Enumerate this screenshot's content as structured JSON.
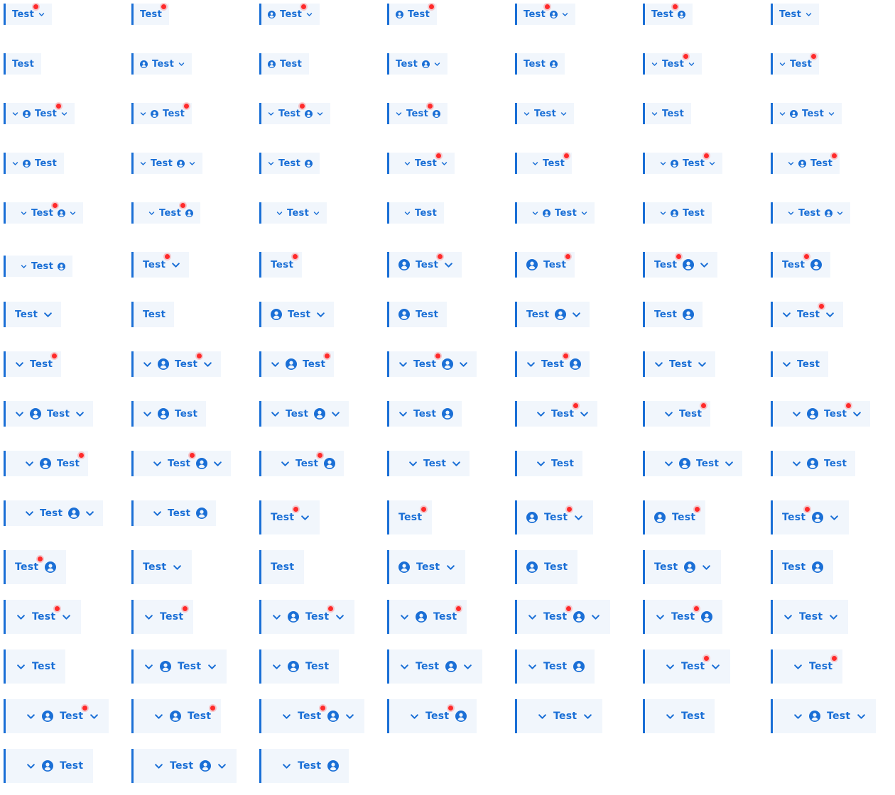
{
  "item_label": "Test",
  "colors": {
    "accent": "#1a6fd6",
    "background": "#f1f6fc",
    "badge": "#ff2a2a"
  },
  "icons": {
    "user": "user-circle-icon",
    "chevron": "chevron-down-icon"
  },
  "items": [
    {
      "l": "Test",
      "s": "sm",
      "p": 0,
      "c": 0,
      "d": 1,
      "a": 1
    },
    {
      "l": "Test",
      "s": "sm",
      "p": 0,
      "c": 0,
      "d": 1,
      "a": 0
    },
    {
      "l": "Test",
      "s": "sm",
      "p": 0,
      "c": 0,
      "d": 1,
      "b": 1,
      "a": 1
    },
    {
      "l": "Test",
      "s": "sm",
      "p": 0,
      "c": 0,
      "d": 1,
      "b": 1,
      "a": 0
    },
    {
      "l": "Test",
      "s": "sm",
      "p": 0,
      "c": 0,
      "d": 1,
      "e": 1,
      "a": 1
    },
    {
      "l": "Test",
      "s": "sm",
      "p": 0,
      "c": 0,
      "d": 1,
      "e": 1,
      "a": 0
    },
    {
      "l": "Test",
      "s": "sm",
      "p": 0,
      "c": 0,
      "d": 0,
      "a": 1
    },
    {
      "l": "Test",
      "s": "sm",
      "p": 0,
      "c": 0,
      "d": 0,
      "a": 0
    },
    {
      "l": "Test",
      "s": "sm",
      "p": 0,
      "c": 0,
      "d": 0,
      "b": 1,
      "a": 1
    },
    {
      "l": "Test",
      "s": "sm",
      "p": 0,
      "c": 0,
      "d": 0,
      "b": 1,
      "a": 0
    },
    {
      "l": "Test",
      "s": "sm",
      "p": 0,
      "c": 0,
      "d": 0,
      "e": 1,
      "a": 1
    },
    {
      "l": "Test",
      "s": "sm",
      "p": 0,
      "c": 0,
      "d": 0,
      "e": 1,
      "a": 0
    },
    {
      "l": "Test",
      "s": "sm",
      "p": 1,
      "c": 1,
      "d": 1,
      "a": 1
    },
    {
      "l": "Test",
      "s": "sm",
      "p": 1,
      "c": 1,
      "d": 1,
      "a": 0
    },
    {
      "l": "Test",
      "s": "sm",
      "p": 1,
      "c": 1,
      "d": 1,
      "b": 1,
      "a": 1
    },
    {
      "l": "Test",
      "s": "sm",
      "p": 1,
      "c": 1,
      "d": 1,
      "b": 1,
      "a": 0
    },
    {
      "l": "Test",
      "s": "sm",
      "p": 1,
      "c": 1,
      "d": 1,
      "e": 1,
      "a": 1
    },
    {
      "l": "Test",
      "s": "sm",
      "p": 1,
      "c": 1,
      "d": 1,
      "e": 1,
      "a": 0
    },
    {
      "l": "Test",
      "s": "sm",
      "p": 1,
      "c": 1,
      "d": 0,
      "a": 1
    },
    {
      "l": "Test",
      "s": "sm",
      "p": 1,
      "c": 1,
      "d": 0,
      "a": 0
    },
    {
      "l": "Test",
      "s": "sm",
      "p": 1,
      "c": 1,
      "d": 0,
      "b": 1,
      "a": 1
    },
    {
      "l": "Test",
      "s": "sm",
      "p": 1,
      "c": 1,
      "d": 0,
      "b": 1,
      "a": 0
    },
    {
      "l": "Test",
      "s": "sm",
      "p": 1,
      "c": 1,
      "d": 0,
      "e": 1,
      "a": 1
    },
    {
      "l": "Test",
      "s": "sm",
      "p": 1,
      "c": 1,
      "d": 0,
      "e": 1,
      "a": 0
    },
    {
      "l": "Test",
      "s": "sm",
      "p": 2,
      "c": 1,
      "d": 1,
      "a": 1
    },
    {
      "l": "Test",
      "s": "sm",
      "p": 2,
      "c": 1,
      "d": 1,
      "a": 0
    },
    {
      "l": "Test",
      "s": "sm",
      "p": 2,
      "c": 1,
      "d": 1,
      "b": 1,
      "a": 1
    },
    {
      "l": "Test",
      "s": "sm",
      "p": 2,
      "c": 1,
      "d": 1,
      "b": 1,
      "a": 0
    },
    {
      "l": "Test",
      "s": "sm",
      "p": 2,
      "c": 1,
      "d": 1,
      "e": 1,
      "a": 1
    },
    {
      "l": "Test",
      "s": "sm",
      "p": 2,
      "c": 1,
      "d": 1,
      "e": 1,
      "a": 0
    },
    {
      "l": "Test",
      "s": "sm",
      "p": 2,
      "c": 1,
      "d": 0,
      "a": 1
    },
    {
      "l": "Test",
      "s": "sm",
      "p": 2,
      "c": 1,
      "d": 0,
      "a": 0
    },
    {
      "l": "Test",
      "s": "sm",
      "p": 2,
      "c": 1,
      "d": 0,
      "b": 1,
      "a": 1
    },
    {
      "l": "Test",
      "s": "sm",
      "p": 2,
      "c": 1,
      "d": 0,
      "b": 1,
      "a": 0
    },
    {
      "l": "Test",
      "s": "sm",
      "p": 2,
      "c": 1,
      "d": 0,
      "e": 1,
      "a": 1
    },
    {
      "l": "Test",
      "s": "sm",
      "p": 2,
      "c": 1,
      "d": 0,
      "e": 1,
      "a": 0
    },
    {
      "l": "Test",
      "s": "md",
      "p": 0,
      "c": 0,
      "d": 1,
      "a": 1
    },
    {
      "l": "Test",
      "s": "md",
      "p": 0,
      "c": 0,
      "d": 1,
      "a": 0
    },
    {
      "l": "Test",
      "s": "md",
      "p": 0,
      "c": 0,
      "d": 1,
      "b": 1,
      "a": 1
    },
    {
      "l": "Test",
      "s": "md",
      "p": 0,
      "c": 0,
      "d": 1,
      "b": 1,
      "a": 0
    },
    {
      "l": "Test",
      "s": "md",
      "p": 0,
      "c": 0,
      "d": 1,
      "e": 1,
      "a": 1
    },
    {
      "l": "Test",
      "s": "md",
      "p": 0,
      "c": 0,
      "d": 1,
      "e": 1,
      "a": 0
    },
    {
      "l": "Test",
      "s": "md",
      "p": 0,
      "c": 0,
      "d": 0,
      "a": 1
    },
    {
      "l": "Test",
      "s": "md",
      "p": 0,
      "c": 0,
      "d": 0,
      "a": 0
    },
    {
      "l": "Test",
      "s": "md",
      "p": 0,
      "c": 0,
      "d": 0,
      "b": 1,
      "a": 1
    },
    {
      "l": "Test",
      "s": "md",
      "p": 0,
      "c": 0,
      "d": 0,
      "b": 1,
      "a": 0
    },
    {
      "l": "Test",
      "s": "md",
      "p": 0,
      "c": 0,
      "d": 0,
      "e": 1,
      "a": 1
    },
    {
      "l": "Test",
      "s": "md",
      "p": 0,
      "c": 0,
      "d": 0,
      "e": 1,
      "a": 0
    },
    {
      "l": "Test",
      "s": "md",
      "p": 1,
      "c": 1,
      "d": 1,
      "a": 1
    },
    {
      "l": "Test",
      "s": "md",
      "p": 1,
      "c": 1,
      "d": 1,
      "a": 0
    },
    {
      "l": "Test",
      "s": "md",
      "p": 1,
      "c": 1,
      "d": 1,
      "b": 1,
      "a": 1
    },
    {
      "l": "Test",
      "s": "md",
      "p": 1,
      "c": 1,
      "d": 1,
      "b": 1,
      "a": 0
    },
    {
      "l": "Test",
      "s": "md",
      "p": 1,
      "c": 1,
      "d": 1,
      "e": 1,
      "a": 1
    },
    {
      "l": "Test",
      "s": "md",
      "p": 1,
      "c": 1,
      "d": 1,
      "e": 1,
      "a": 0
    },
    {
      "l": "Test",
      "s": "md",
      "p": 1,
      "c": 1,
      "d": 0,
      "a": 1
    },
    {
      "l": "Test",
      "s": "md",
      "p": 1,
      "c": 1,
      "d": 0,
      "a": 0
    },
    {
      "l": "Test",
      "s": "md",
      "p": 1,
      "c": 1,
      "d": 0,
      "b": 1,
      "a": 1
    },
    {
      "l": "Test",
      "s": "md",
      "p": 1,
      "c": 1,
      "d": 0,
      "b": 1,
      "a": 0
    },
    {
      "l": "Test",
      "s": "md",
      "p": 1,
      "c": 1,
      "d": 0,
      "e": 1,
      "a": 1
    },
    {
      "l": "Test",
      "s": "md",
      "p": 1,
      "c": 1,
      "d": 0,
      "e": 1,
      "a": 0
    },
    {
      "l": "Test",
      "s": "md",
      "p": 2,
      "c": 1,
      "d": 1,
      "a": 1
    },
    {
      "l": "Test",
      "s": "md",
      "p": 2,
      "c": 1,
      "d": 1,
      "a": 0
    },
    {
      "l": "Test",
      "s": "md",
      "p": 2,
      "c": 1,
      "d": 1,
      "b": 1,
      "a": 1
    },
    {
      "l": "Test",
      "s": "md",
      "p": 2,
      "c": 1,
      "d": 1,
      "b": 1,
      "a": 0
    },
    {
      "l": "Test",
      "s": "md",
      "p": 2,
      "c": 1,
      "d": 1,
      "e": 1,
      "a": 1
    },
    {
      "l": "Test",
      "s": "md",
      "p": 2,
      "c": 1,
      "d": 1,
      "e": 1,
      "a": 0
    },
    {
      "l": "Test",
      "s": "md",
      "p": 2,
      "c": 1,
      "d": 0,
      "a": 1
    },
    {
      "l": "Test",
      "s": "md",
      "p": 2,
      "c": 1,
      "d": 0,
      "a": 0
    },
    {
      "l": "Test",
      "s": "md",
      "p": 2,
      "c": 1,
      "d": 0,
      "b": 1,
      "a": 1
    },
    {
      "l": "Test",
      "s": "md",
      "p": 2,
      "c": 1,
      "d": 0,
      "b": 1,
      "a": 0
    },
    {
      "l": "Test",
      "s": "md",
      "p": 2,
      "c": 1,
      "d": 0,
      "e": 1,
      "a": 1
    },
    {
      "l": "Test",
      "s": "md",
      "p": 2,
      "c": 1,
      "d": 0,
      "e": 1,
      "a": 0
    },
    {
      "l": "Test",
      "s": "lg",
      "p": 0,
      "c": 0,
      "d": 1,
      "a": 1
    },
    {
      "l": "Test",
      "s": "lg",
      "p": 0,
      "c": 0,
      "d": 1,
      "a": 0
    },
    {
      "l": "Test",
      "s": "lg",
      "p": 0,
      "c": 0,
      "d": 1,
      "b": 1,
      "a": 1
    },
    {
      "l": "Test",
      "s": "lg",
      "p": 0,
      "c": 0,
      "d": 1,
      "b": 1,
      "a": 0
    },
    {
      "l": "Test",
      "s": "lg",
      "p": 0,
      "c": 0,
      "d": 1,
      "e": 1,
      "a": 1
    },
    {
      "l": "Test",
      "s": "lg",
      "p": 0,
      "c": 0,
      "d": 1,
      "e": 1,
      "a": 0
    },
    {
      "l": "Test",
      "s": "lg",
      "p": 0,
      "c": 0,
      "d": 0,
      "a": 1
    },
    {
      "l": "Test",
      "s": "lg",
      "p": 0,
      "c": 0,
      "d": 0,
      "a": 0
    },
    {
      "l": "Test",
      "s": "lg",
      "p": 0,
      "c": 0,
      "d": 0,
      "b": 1,
      "a": 1
    },
    {
      "l": "Test",
      "s": "lg",
      "p": 0,
      "c": 0,
      "d": 0,
      "b": 1,
      "a": 0
    },
    {
      "l": "Test",
      "s": "lg",
      "p": 0,
      "c": 0,
      "d": 0,
      "e": 1,
      "a": 1
    },
    {
      "l": "Test",
      "s": "lg",
      "p": 0,
      "c": 0,
      "d": 0,
      "e": 1,
      "a": 0
    },
    {
      "l": "Test",
      "s": "lg",
      "p": 1,
      "c": 1,
      "d": 1,
      "a": 1
    },
    {
      "l": "Test",
      "s": "lg",
      "p": 1,
      "c": 1,
      "d": 1,
      "a": 0
    },
    {
      "l": "Test",
      "s": "lg",
      "p": 1,
      "c": 1,
      "d": 1,
      "b": 1,
      "a": 1
    },
    {
      "l": "Test",
      "s": "lg",
      "p": 1,
      "c": 1,
      "d": 1,
      "b": 1,
      "a": 0
    },
    {
      "l": "Test",
      "s": "lg",
      "p": 1,
      "c": 1,
      "d": 1,
      "e": 1,
      "a": 1
    },
    {
      "l": "Test",
      "s": "lg",
      "p": 1,
      "c": 1,
      "d": 1,
      "e": 1,
      "a": 0
    },
    {
      "l": "Test",
      "s": "lg",
      "p": 1,
      "c": 1,
      "d": 0,
      "a": 1
    },
    {
      "l": "Test",
      "s": "lg",
      "p": 1,
      "c": 1,
      "d": 0,
      "a": 0
    },
    {
      "l": "Test",
      "s": "lg",
      "p": 1,
      "c": 1,
      "d": 0,
      "b": 1,
      "a": 1
    },
    {
      "l": "Test",
      "s": "lg",
      "p": 1,
      "c": 1,
      "d": 0,
      "b": 1,
      "a": 0
    },
    {
      "l": "Test",
      "s": "lg",
      "p": 1,
      "c": 1,
      "d": 0,
      "e": 1,
      "a": 1
    },
    {
      "l": "Test",
      "s": "lg",
      "p": 1,
      "c": 1,
      "d": 0,
      "e": 1,
      "a": 0
    },
    {
      "l": "Test",
      "s": "lg",
      "p": 2,
      "c": 1,
      "d": 1,
      "a": 1
    },
    {
      "l": "Test",
      "s": "lg",
      "p": 2,
      "c": 1,
      "d": 1,
      "a": 0
    },
    {
      "l": "Test",
      "s": "lg",
      "p": 2,
      "c": 1,
      "d": 1,
      "b": 1,
      "a": 1
    },
    {
      "l": "Test",
      "s": "lg",
      "p": 2,
      "c": 1,
      "d": 1,
      "b": 1,
      "a": 0
    },
    {
      "l": "Test",
      "s": "lg",
      "p": 2,
      "c": 1,
      "d": 1,
      "e": 1,
      "a": 1
    },
    {
      "l": "Test",
      "s": "lg",
      "p": 2,
      "c": 1,
      "d": 1,
      "e": 1,
      "a": 0
    },
    {
      "l": "Test",
      "s": "lg",
      "p": 2,
      "c": 1,
      "d": 0,
      "a": 1
    },
    {
      "l": "Test",
      "s": "lg",
      "p": 2,
      "c": 1,
      "d": 0,
      "a": 0
    },
    {
      "l": "Test",
      "s": "lg",
      "p": 2,
      "c": 1,
      "d": 0,
      "b": 1,
      "a": 1
    },
    {
      "l": "Test",
      "s": "lg",
      "p": 2,
      "c": 1,
      "d": 0,
      "b": 1,
      "a": 0
    },
    {
      "l": "Test",
      "s": "lg",
      "p": 2,
      "c": 1,
      "d": 0,
      "e": 1,
      "a": 1
    },
    {
      "l": "Test",
      "s": "lg",
      "p": 2,
      "c": 1,
      "d": 0,
      "e": 1,
      "a": 0
    }
  ]
}
